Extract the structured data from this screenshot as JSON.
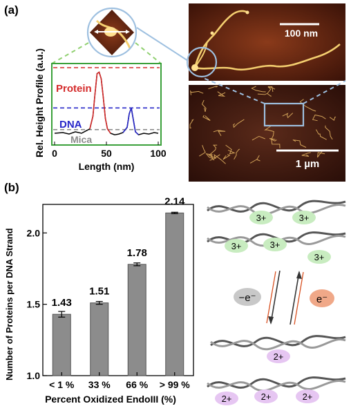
{
  "figure": {
    "panel_a_label": "(a)",
    "panel_b_label": "(b)",
    "scale_bar_top": "100 nm",
    "scale_bar_bottom": "1 µm"
  },
  "profile_plot": {
    "ylabel": "Rel. Height Profile (a.u.)",
    "xlabel": "Length (nm)",
    "xticks": [
      "0",
      "50",
      "100"
    ],
    "annotations": {
      "protein": "Protein",
      "dna": "DNA",
      "mica": "Mica"
    },
    "colors": {
      "protein": "#d42a2a",
      "dna": "#2626c8",
      "mica": "#8a8a8a",
      "frame": "#3aa03a"
    },
    "profile_points": [
      [
        0,
        0.12
      ],
      [
        8,
        0.13
      ],
      [
        14,
        0.11
      ],
      [
        20,
        0.14
      ],
      [
        26,
        0.12
      ],
      [
        30,
        0.15
      ],
      [
        34,
        0.18
      ],
      [
        37,
        0.35
      ],
      [
        39,
        0.65
      ],
      [
        41,
        0.92
      ],
      [
        43,
        0.94
      ],
      [
        45,
        0.85
      ],
      [
        47,
        0.6
      ],
      [
        49,
        0.32
      ],
      [
        51,
        0.18
      ],
      [
        54,
        0.12
      ],
      [
        58,
        0.1
      ],
      [
        62,
        0.11
      ],
      [
        66,
        0.13
      ],
      [
        70,
        0.2
      ],
      [
        72,
        0.38
      ],
      [
        74,
        0.46
      ],
      [
        76,
        0.3
      ],
      [
        78,
        0.14
      ],
      [
        81,
        0.1
      ],
      [
        86,
        0.12
      ],
      [
        91,
        0.11
      ],
      [
        96,
        0.13
      ],
      [
        100,
        0.12
      ]
    ],
    "levels": {
      "protein": 1.0,
      "dna": 0.46,
      "mica": 0.17
    }
  },
  "chart_data": {
    "type": "bar",
    "categories": [
      "< 1 %",
      "33 %",
      "66 %",
      "> 99 %"
    ],
    "values": [
      1.43,
      1.51,
      1.78,
      2.14
    ],
    "errors": [
      0.02,
      0.01,
      0.01,
      0.005
    ],
    "value_labels": [
      "1.43",
      "1.51",
      "1.78",
      "2.14"
    ],
    "ylabel": "Number of Proteins per DNA Strand",
    "xlabel": "Percent Oxidized EndoIII (%)",
    "ylim": [
      1.0,
      2.2
    ],
    "yticks": [
      "1.0",
      "1.5",
      "2.0"
    ],
    "bar_color": "#8c8c8c"
  },
  "schematic": {
    "top_charges": [
      "3+",
      "3+",
      "3+",
      "3+",
      "3+"
    ],
    "bottom_charges": [
      "2+",
      "2+",
      "2+",
      "2+"
    ],
    "oxidation_label": "−e⁻",
    "reduction_label": "e⁻",
    "colors": {
      "oxidized": "#c8ecc0",
      "reduced": "#e6c6f2",
      "minus_e": "#c8c8c8",
      "plus_e": "#f0a888"
    }
  }
}
